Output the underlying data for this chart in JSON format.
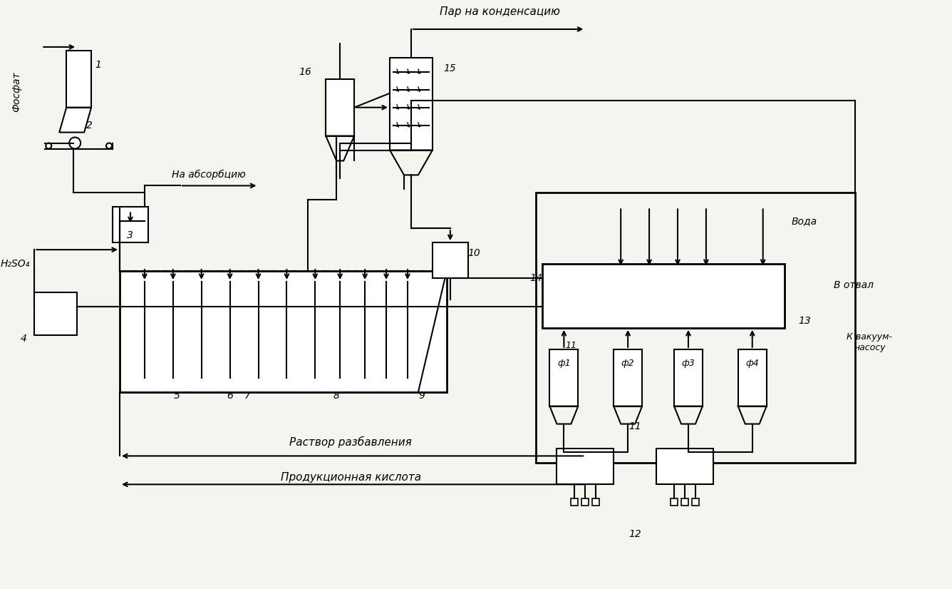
{
  "bg_color": "#f5f5f0",
  "line_color": "#000000",
  "title": "",
  "labels": {
    "fosfat": "Фосфат",
    "h2so4": "H₂SO₄",
    "na_absorbciyu": "На абсорбцию",
    "par_na_kondensaciyu": "Пар на конденсацию",
    "voda": "Вода",
    "v_otval": "В отвал",
    "k_vakuum_nasosu": "К вакуум-\nнасосу",
    "rastvor_razbavleniya": "Раствор разбавления",
    "produktsionnaya_kislota": "Продукционная кислота"
  }
}
